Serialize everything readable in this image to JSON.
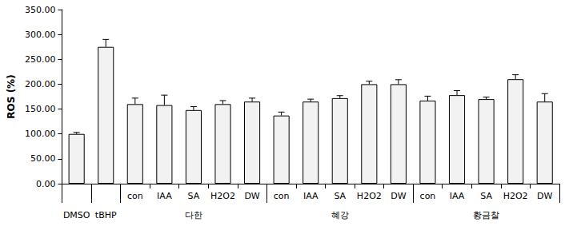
{
  "chart_data": {
    "type": "bar",
    "y_label": "ROS (%)",
    "categories": [
      null,
      null,
      "con",
      "IAA",
      "SA",
      "H2O2",
      "DW",
      "con",
      "IAA",
      "SA",
      "H2O2",
      "DW",
      "con",
      "IAA",
      "SA",
      "H2O2",
      "DW"
    ],
    "groups": [
      {
        "label": "DMSO",
        "size": 1
      },
      {
        "label": "tBHP",
        "size": 1
      },
      {
        "label": "다한",
        "size": 5
      },
      {
        "label": "혜강",
        "size": 5
      },
      {
        "label": "황금찰",
        "size": 5
      }
    ],
    "values": [
      100,
      275,
      160,
      158,
      148,
      160,
      165,
      137,
      165,
      172,
      200,
      200,
      167,
      178,
      170,
      210,
      165
    ],
    "errors": [
      3,
      15,
      12,
      20,
      7,
      7,
      7,
      7,
      5,
      5,
      6,
      9,
      9,
      9,
      4,
      9,
      16
    ],
    "color": "#f2f2f2",
    "ylim": [
      0,
      350
    ],
    "yticks": [
      {
        "value": 0,
        "label": "0.00"
      },
      {
        "value": 50,
        "label": "50.00"
      },
      {
        "value": 100,
        "label": "100.00"
      },
      {
        "value": 150,
        "label": "150.00"
      },
      {
        "value": 200,
        "label": "200.00"
      },
      {
        "value": 250,
        "label": "250.00"
      },
      {
        "value": 300,
        "label": "300.00"
      },
      {
        "value": 350,
        "label": "350.00"
      }
    ],
    "grid": false
  }
}
